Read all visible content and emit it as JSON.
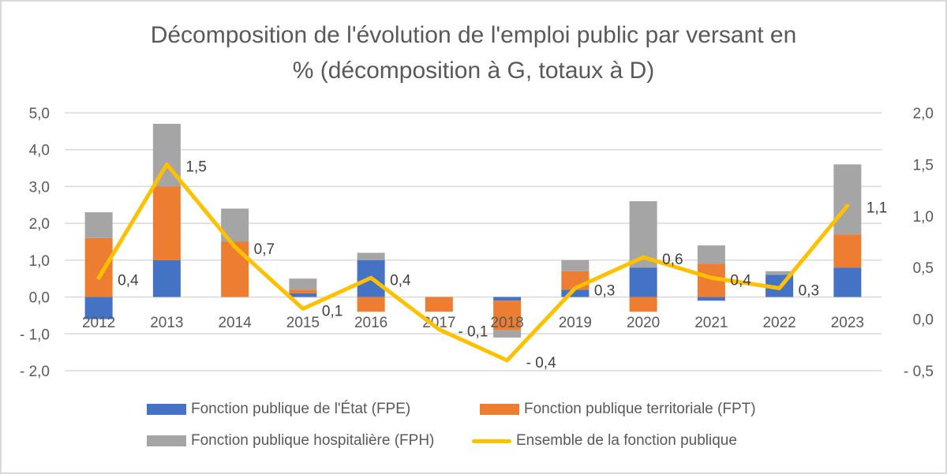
{
  "chart_data": {
    "type": "bar",
    "subtype": "stacked bar + line (secondary axis)",
    "title_lines": [
      "Décomposition de l'évolution de l'emploi public par versant en",
      "% (décomposition à G, totaux à D)"
    ],
    "categories": [
      "2012",
      "2013",
      "2014",
      "2015",
      "2016",
      "2017",
      "2018",
      "2019",
      "2020",
      "2021",
      "2022",
      "2023"
    ],
    "series": [
      {
        "name": "Fonction publique de l'État (FPE)",
        "type": "bar",
        "axis": "left",
        "color": "#4472C4",
        "values": [
          -0.6,
          1.0,
          0.0,
          0.1,
          1.0,
          0.0,
          -0.1,
          0.2,
          0.8,
          -0.1,
          0.6,
          0.8
        ]
      },
      {
        "name": "Fonction publique territoriale (FPT)",
        "type": "bar",
        "axis": "left",
        "color": "#ED7D31",
        "values": [
          1.6,
          2.0,
          1.5,
          0.1,
          -0.4,
          -0.4,
          -0.8,
          0.5,
          -0.4,
          0.9,
          0.0,
          0.9
        ]
      },
      {
        "name": "Fonction publique hospitalière (FPH)",
        "type": "bar",
        "axis": "left",
        "color": "#A5A5A5",
        "values": [
          0.7,
          1.7,
          0.9,
          0.3,
          0.2,
          0.0,
          -0.2,
          0.3,
          1.8,
          0.5,
          0.1,
          1.9
        ]
      },
      {
        "name": "Ensemble de la fonction publique",
        "type": "line",
        "axis": "right",
        "color": "#FFC000",
        "values": [
          0.4,
          1.5,
          0.7,
          0.1,
          0.4,
          -0.1,
          -0.4,
          0.3,
          0.6,
          0.4,
          0.3,
          1.1
        ],
        "labels": [
          "0,4",
          "1,5",
          "0,7",
          "0,1",
          "0,4",
          "- 0,1",
          "- 0,4",
          "0,3",
          "0,6",
          "0,4",
          "0,3",
          "1,1"
        ]
      }
    ],
    "y_left": {
      "ylim": [
        -2.0,
        5.0
      ],
      "ticks": [
        5.0,
        4.0,
        3.0,
        2.0,
        1.0,
        0.0,
        -1.0,
        -2.0
      ],
      "tick_labels": [
        "5,0",
        "4,0",
        "3,0",
        "2,0",
        "1,0",
        "0,0",
        "- 1,0",
        "- 2,0"
      ]
    },
    "y_right": {
      "ylim": [
        -0.5,
        2.0
      ],
      "ticks": [
        2.0,
        1.5,
        1.0,
        0.5,
        0.0,
        -0.5
      ],
      "tick_labels": [
        "2,0",
        "1,5",
        "1,0",
        "0,5",
        "0,0",
        "- 0,5"
      ]
    },
    "xlabel": "",
    "ylabel": "",
    "grid": true,
    "legend_position": "bottom"
  },
  "legend": [
    {
      "label": "Fonction publique de l'État (FPE)",
      "color": "#4472C4",
      "kind": "bar"
    },
    {
      "label": "Fonction publique territoriale (FPT)",
      "color": "#ED7D31",
      "kind": "bar"
    },
    {
      "label": "Fonction publique hospitalière (FPH)",
      "color": "#A5A5A5",
      "kind": "bar"
    },
    {
      "label": "Ensemble de la fonction publique",
      "color": "#FFC000",
      "kind": "line"
    }
  ]
}
